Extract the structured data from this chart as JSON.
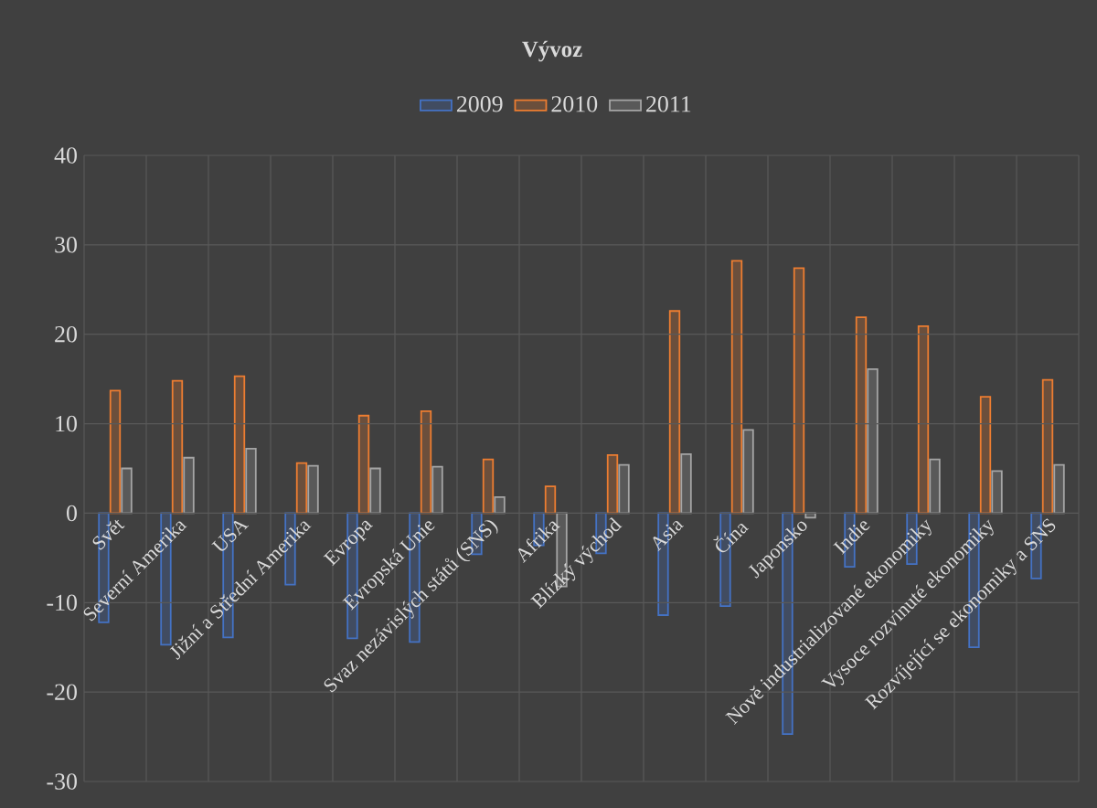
{
  "chart_data": {
    "type": "bar",
    "title": "Vývoz",
    "categories": [
      "Svět",
      "Severní Amerika",
      "USA",
      "Jižní a Střední Amerika",
      "Evropa",
      "Evropská Unie",
      "Svaz nezávislých států (SNS)",
      "Afrika",
      "Blízký východ",
      "Asia",
      "Čína",
      "Japonsko",
      "Indie",
      "Nově industrializované ekonomiky",
      "Vysoce rozvinuté ekonomiky",
      "Rozvíjející se ekonomiky a SNS"
    ],
    "series": [
      {
        "name": "2009",
        "color": "#4472c4",
        "values": [
          -12.2,
          -14.7,
          -13.9,
          -8.0,
          -14.0,
          -14.4,
          -4.6,
          -3.6,
          -4.5,
          -11.4,
          -10.4,
          -24.7,
          -6.0,
          -5.7,
          -15.0,
          -7.3
        ]
      },
      {
        "name": "2010",
        "color": "#ed7d31",
        "values": [
          13.7,
          14.8,
          15.3,
          5.6,
          10.9,
          11.4,
          6.0,
          3.0,
          6.5,
          22.6,
          28.2,
          27.4,
          21.9,
          20.9,
          13.0,
          14.9
        ]
      },
      {
        "name": "2011",
        "color": "#a5a5a5",
        "values": [
          5.0,
          6.2,
          7.2,
          5.3,
          5.0,
          5.2,
          1.8,
          -8.2,
          5.4,
          6.6,
          9.3,
          -0.5,
          16.1,
          6.0,
          4.7,
          5.4
        ]
      }
    ],
    "ylim": [
      -30,
      40
    ],
    "yticks": [
      -30,
      -20,
      -10,
      0,
      10,
      20,
      30,
      40
    ],
    "grid": true,
    "legend": "top"
  }
}
